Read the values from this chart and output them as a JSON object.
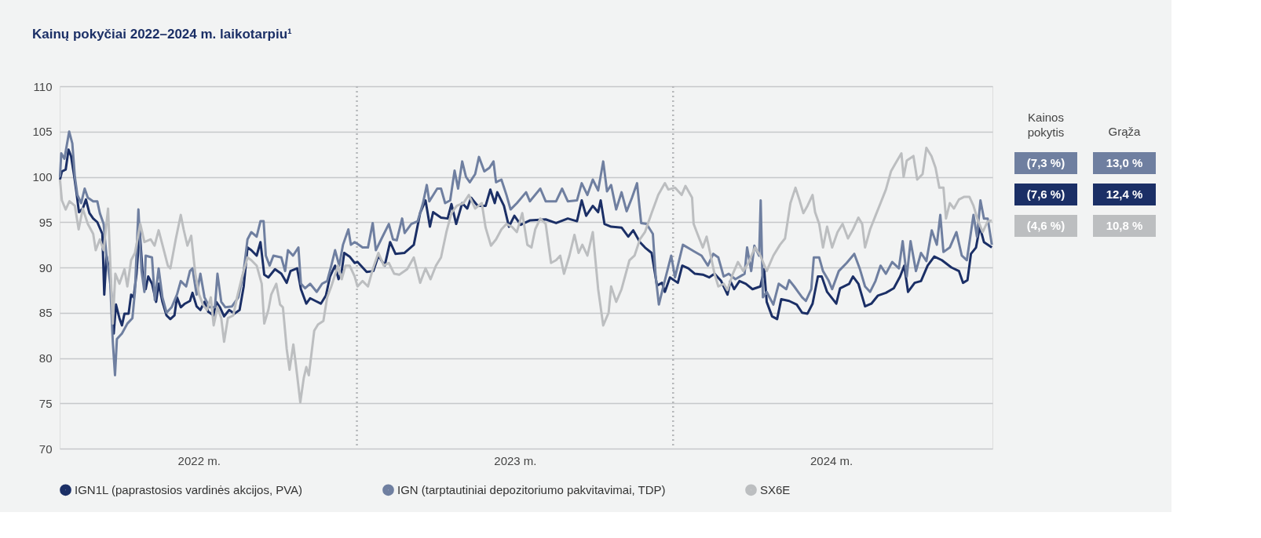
{
  "chart_data": {
    "type": "line",
    "title": "Kainų pokyčiai 2022–2024 m. laikotarpiu¹",
    "xlim": [
      2022.06,
      2025.01
    ],
    "xticks": [
      {
        "value": 2022.5,
        "label": "2022 m."
      },
      {
        "value": 2023.5,
        "label": "2023 m."
      },
      {
        "value": 2024.5,
        "label": "2024 m."
      }
    ],
    "ylim": [
      70,
      110
    ],
    "yticks": [
      70,
      75,
      80,
      85,
      90,
      95,
      100,
      105,
      110
    ],
    "grid": "y",
    "legend": "bottom",
    "line_style": "solid",
    "ref_lines": [
      {
        "axis": "x",
        "value": 2023.0,
        "label": null,
        "color": "#b5b7b9",
        "line_style": "dotted"
      },
      {
        "axis": "x",
        "value": 2024.0,
        "label": null,
        "color": "#b5b7b9",
        "line_style": "dotted"
      }
    ],
    "annotations": [
      "Kainos pokytis",
      "Grąža",
      "(7,3 %)",
      "13,0 %",
      "(7,6 %)",
      "12,4 %",
      "(4,6 %)",
      "10,8 %"
    ],
    "series": [
      {
        "name": "IGN1L (paprastosios vardinės akcijos, PVA)",
        "color": "#1b2f66",
        "x": [
          2022.061,
          2022.067,
          2022.079,
          2022.088,
          2022.096,
          2022.105,
          2022.113,
          2022.121,
          2022.133,
          2022.143,
          2022.154,
          2022.166,
          2022.179,
          2022.195,
          2022.201,
          2022.208,
          2022.22,
          2022.231,
          2022.238,
          2022.249,
          2022.257,
          2022.265,
          2022.278,
          2022.286,
          2022.294,
          2022.303,
          2022.313,
          2022.323,
          2022.332,
          2022.34,
          2022.352,
          2022.365,
          2022.373,
          2022.385,
          2022.398,
          2022.41,
          2022.423,
          2022.431,
          2022.443,
          2022.456,
          2022.472,
          2022.48,
          2022.493,
          2022.505,
          2022.518,
          2022.53,
          2022.547,
          2022.555,
          2022.567,
          2022.58,
          2022.596,
          2022.613,
          2022.629,
          2022.642,
          2022.654,
          2022.666,
          2022.683,
          2022.695,
          2022.707,
          2022.72,
          2022.741,
          2022.761,
          2022.778,
          2022.79,
          2022.811,
          2022.823,
          2022.84,
          2022.852,
          2022.869,
          2022.886,
          2022.902,
          2022.915,
          2022.931,
          2022.942,
          2022.952,
          2022.96,
          2022.977,
          2022.993,
          2023.002,
          2023.031,
          2023.052,
          2023.068,
          2023.088,
          2023.105,
          2023.122,
          2023.15,
          2023.18,
          2023.2,
          2023.217,
          2023.231,
          2023.241,
          2023.266,
          2023.287,
          2023.299,
          2023.314,
          2023.333,
          2023.349,
          2023.361,
          2023.382,
          2023.407,
          2023.422,
          2023.436,
          2023.444,
          2023.465,
          2023.481,
          2023.498,
          2023.518,
          2023.548,
          2023.597,
          2023.63,
          2023.667,
          2023.696,
          2023.711,
          2023.725,
          2023.746,
          2023.763,
          2023.771,
          2023.783,
          2023.804,
          2023.837,
          2023.858,
          2023.874,
          2023.895,
          2023.911,
          2023.932,
          2023.949,
          2023.965,
          2023.974,
          2023.99,
          2024.015,
          2024.029,
          2024.048,
          2024.069,
          2024.094,
          2024.114,
          2024.131,
          2024.152,
          2024.172,
          2024.181,
          2024.193,
          2024.21,
          2024.23,
          2024.251,
          2024.276,
          2024.288,
          2024.296,
          2024.313,
          2024.329,
          2024.342,
          2024.367,
          2024.391,
          2024.408,
          2024.425,
          2024.441,
          2024.458,
          2024.47,
          2024.487,
          2024.516,
          2024.528,
          2024.557,
          2024.569,
          2024.586,
          2024.607,
          2024.627,
          2024.648,
          2024.673,
          2024.698,
          2024.718,
          2024.731,
          2024.743,
          2024.764,
          2024.784,
          2024.805,
          2024.826,
          2024.85,
          2024.88,
          2024.904,
          2024.917,
          2024.931,
          2024.942,
          2024.958,
          2024.97,
          2024.983,
          2025.008
        ],
        "values": [
          99.7,
          100.6,
          100.8,
          103.0,
          102.3,
          100.3,
          98.3,
          96.1,
          96.5,
          97.5,
          96.0,
          95.4,
          95.0,
          93.7,
          87.0,
          91.3,
          89.0,
          82.7,
          85.9,
          84.4,
          83.6,
          84.9,
          84.9,
          87.0,
          86.7,
          89.3,
          94.1,
          89.0,
          87.6,
          89.0,
          88.2,
          86.2,
          88.2,
          86.2,
          84.7,
          84.3,
          84.7,
          86.7,
          85.6,
          86.0,
          86.3,
          87.2,
          85.7,
          85.3,
          86.2,
          85.1,
          84.7,
          86.2,
          85.6,
          84.6,
          85.3,
          84.9,
          85.3,
          87.9,
          92.2,
          91.9,
          91.3,
          92.8,
          89.2,
          88.9,
          89.8,
          89.3,
          88.3,
          89.6,
          89.9,
          87.6,
          86.0,
          86.6,
          86.3,
          86.0,
          86.9,
          89.0,
          90.2,
          88.7,
          89.6,
          91.6,
          91.2,
          90.5,
          90.6,
          89.5,
          89.6,
          91.3,
          90.2,
          92.8,
          91.5,
          91.6,
          92.5,
          96.0,
          97.4,
          94.5,
          96.1,
          95.5,
          95.4,
          97.0,
          94.8,
          97.1,
          96.5,
          97.7,
          96.8,
          96.8,
          98.6,
          97.1,
          98.3,
          96.8,
          94.5,
          95.7,
          94.7,
          95.2,
          95.3,
          94.9,
          95.4,
          95.1,
          97.4,
          95.7,
          96.8,
          96.1,
          97.4,
          94.8,
          94.5,
          94.4,
          93.4,
          94.1,
          92.8,
          92.2,
          91.6,
          88.0,
          88.3,
          87.3,
          88.9,
          88.3,
          90.2,
          89.9,
          89.3,
          89.2,
          88.9,
          89.3,
          88.5,
          87.0,
          88.5,
          87.6,
          88.5,
          88.2,
          87.6,
          87.9,
          89.8,
          86.2,
          84.6,
          84.3,
          86.5,
          86.3,
          85.9,
          85.0,
          84.9,
          86.0,
          89.0,
          89.0,
          87.3,
          86.0,
          87.7,
          88.2,
          89.0,
          88.2,
          85.7,
          86.0,
          86.9,
          87.2,
          87.7,
          89.0,
          90.2,
          87.3,
          88.3,
          88.5,
          90.2,
          91.2,
          90.8,
          90.0,
          89.6,
          88.3,
          88.6,
          91.5,
          92.2,
          94.5,
          92.8,
          92.2
        ]
      },
      {
        "name": "IGN (tarptautiniai depozitoriumo pakvitavimai, TDP)",
        "color": "#6f7fa0",
        "x": [
          2022.061,
          2022.065,
          2022.075,
          2022.09,
          2022.1,
          2022.108,
          2022.116,
          2022.128,
          2022.139,
          2022.149,
          2022.166,
          2022.179,
          2022.187,
          2022.199,
          2022.208,
          2022.22,
          2022.228,
          2022.235,
          2022.241,
          2022.257,
          2022.274,
          2022.29,
          2022.298,
          2022.309,
          2022.319,
          2022.328,
          2022.332,
          2022.352,
          2022.361,
          2022.373,
          2022.385,
          2022.398,
          2022.414,
          2022.431,
          2022.443,
          2022.46,
          2022.472,
          2022.48,
          2022.493,
          2022.505,
          2022.518,
          2022.534,
          2022.551,
          2022.559,
          2022.571,
          2022.584,
          2022.605,
          2022.625,
          2022.642,
          2022.654,
          2022.666,
          2022.683,
          2022.695,
          2022.705,
          2022.712,
          2022.724,
          2022.736,
          2022.761,
          2022.773,
          2022.782,
          2022.798,
          2022.815,
          2022.823,
          2022.836,
          2022.852,
          2022.873,
          2022.89,
          2022.906,
          2022.919,
          2022.931,
          2022.944,
          2022.956,
          2022.973,
          2022.981,
          2022.993,
          2023.002,
          2023.018,
          2023.035,
          2023.05,
          2023.06,
          2023.081,
          2023.101,
          2023.114,
          2023.126,
          2023.143,
          2023.151,
          2023.172,
          2023.192,
          2023.209,
          2023.221,
          2023.229,
          2023.254,
          2023.266,
          2023.279,
          2023.295,
          2023.309,
          2023.32,
          2023.333,
          2023.345,
          2023.357,
          2023.374,
          2023.386,
          2023.403,
          2023.419,
          2023.432,
          2023.44,
          2023.457,
          2023.473,
          2023.486,
          2023.506,
          2023.535,
          2023.547,
          2023.58,
          2023.597,
          2023.63,
          2023.649,
          2023.667,
          2023.696,
          2023.711,
          2023.729,
          2023.746,
          2023.763,
          2023.779,
          2023.791,
          2023.804,
          2023.82,
          2023.837,
          2023.853,
          2023.87,
          2023.886,
          2023.899,
          2023.916,
          2023.936,
          2023.945,
          2023.955,
          2023.969,
          2023.994,
          2024.006,
          2024.031,
          2024.06,
          2024.065,
          2024.09,
          2024.11,
          2024.127,
          2024.143,
          2024.16,
          2024.176,
          2024.197,
          2024.226,
          2024.234,
          2024.247,
          2024.257,
          2024.272,
          2024.277,
          2024.284,
          2024.296,
          2024.317,
          2024.334,
          2024.358,
          2024.367,
          2024.383,
          2024.408,
          2024.42,
          2024.437,
          2024.445,
          2024.462,
          2024.474,
          2024.491,
          2024.503,
          2024.524,
          2024.549,
          2024.573,
          2024.59,
          2024.607,
          2024.623,
          2024.64,
          2024.656,
          2024.673,
          2024.693,
          2024.714,
          2024.726,
          2024.739,
          2024.751,
          2024.768,
          2024.784,
          2024.801,
          2024.818,
          2024.834,
          2024.845,
          2024.855,
          2024.875,
          2024.896,
          2024.913,
          2024.929,
          2024.95,
          2024.961,
          2024.972,
          2024.983,
          2024.995,
          2025.008
        ],
        "values": [
          100.0,
          102.6,
          102.0,
          105.0,
          103.7,
          100.0,
          98.0,
          97.1,
          98.7,
          97.7,
          97.3,
          97.3,
          96.0,
          94.8,
          91.3,
          88.2,
          81.8,
          78.1,
          82.1,
          82.7,
          83.8,
          84.4,
          87.3,
          96.4,
          89.6,
          87.3,
          91.3,
          91.1,
          86.4,
          89.9,
          86.7,
          85.0,
          85.6,
          87.0,
          88.5,
          87.9,
          89.6,
          89.9,
          87.0,
          89.3,
          86.7,
          85.6,
          85.6,
          89.3,
          86.2,
          85.6,
          85.7,
          86.7,
          89.6,
          93.1,
          93.9,
          93.4,
          95.1,
          95.1,
          91.3,
          90.2,
          91.3,
          91.1,
          89.6,
          91.9,
          91.3,
          92.2,
          88.2,
          87.7,
          88.2,
          87.3,
          88.2,
          88.5,
          90.2,
          91.9,
          90.2,
          92.5,
          94.2,
          92.5,
          92.8,
          92.6,
          92.2,
          92.2,
          94.9,
          91.9,
          93.4,
          94.8,
          93.1,
          93.0,
          95.4,
          93.8,
          94.8,
          95.1,
          97.1,
          99.1,
          97.3,
          98.7,
          98.7,
          97.1,
          97.4,
          100.7,
          98.7,
          101.7,
          100.0,
          99.4,
          100.3,
          102.2,
          100.6,
          101.0,
          101.7,
          99.4,
          99.7,
          98.0,
          96.4,
          97.1,
          98.3,
          97.3,
          98.7,
          97.3,
          97.3,
          98.7,
          97.3,
          97.4,
          99.3,
          98.0,
          99.7,
          98.5,
          101.7,
          98.4,
          99.1,
          96.4,
          98.3,
          96.2,
          97.7,
          99.3,
          94.9,
          94.8,
          93.7,
          89.0,
          85.9,
          87.9,
          91.3,
          88.9,
          92.5,
          91.9,
          91.8,
          91.3,
          90.2,
          91.5,
          91.1,
          89.0,
          89.3,
          88.7,
          89.3,
          92.2,
          89.6,
          92.4,
          91.3,
          97.4,
          86.7,
          87.3,
          85.9,
          88.2,
          87.6,
          88.6,
          87.9,
          86.7,
          86.3,
          87.6,
          91.1,
          91.1,
          89.6,
          88.6,
          87.6,
          89.6,
          90.5,
          91.5,
          89.9,
          87.9,
          87.3,
          88.5,
          90.2,
          89.3,
          90.6,
          89.9,
          92.9,
          89.0,
          92.9,
          89.6,
          91.6,
          90.7,
          94.1,
          92.5,
          95.8,
          91.7,
          92.2,
          93.9,
          91.3,
          90.8,
          95.8,
          93.4,
          97.4,
          95.4,
          95.4,
          92.5
        ]
      },
      {
        "name": "SX6E",
        "color": "#bcbec0",
        "x": [
          2022.061,
          2022.067,
          2022.079,
          2022.091,
          2022.108,
          2022.12,
          2022.133,
          2022.149,
          2022.166,
          2022.174,
          2022.187,
          2022.199,
          2022.213,
          2022.22,
          2022.228,
          2022.236,
          2022.249,
          2022.265,
          2022.274,
          2022.286,
          2022.298,
          2022.315,
          2022.328,
          2022.348,
          2022.36,
          2022.373,
          2022.385,
          2022.402,
          2022.41,
          2022.427,
          2022.443,
          2022.452,
          2022.464,
          2022.476,
          2022.489,
          2022.501,
          2022.513,
          2022.526,
          2022.538,
          2022.547,
          2022.559,
          2022.571,
          2022.58,
          2022.592,
          2022.609,
          2022.621,
          2022.637,
          2022.654,
          2022.666,
          2022.683,
          2022.699,
          2022.707,
          2022.72,
          2022.729,
          2022.745,
          2022.757,
          2022.766,
          2022.778,
          2022.787,
          2022.799,
          2022.811,
          2022.821,
          2022.832,
          2022.84,
          2022.848,
          2022.865,
          2022.877,
          2022.894,
          2022.906,
          2022.919,
          2022.94,
          2022.952,
          2022.964,
          2022.977,
          2022.993,
          2023.002,
          2023.018,
          2023.035,
          2023.051,
          2023.068,
          2023.085,
          2023.101,
          2023.118,
          2023.134,
          2023.159,
          2023.18,
          2023.2,
          2023.217,
          2023.233,
          2023.25,
          2023.266,
          2023.283,
          2023.299,
          2023.316,
          2023.337,
          2023.354,
          2023.374,
          2023.395,
          2023.407,
          2023.424,
          2023.44,
          2023.457,
          2023.473,
          2023.49,
          2023.506,
          2023.523,
          2023.539,
          2023.552,
          2023.564,
          2023.58,
          2023.597,
          2023.614,
          2023.63,
          2023.643,
          2023.655,
          2023.672,
          2023.688,
          2023.701,
          2023.713,
          2023.729,
          2023.746,
          2023.763,
          2023.779,
          2023.796,
          2023.804,
          2023.82,
          2023.837,
          2023.862,
          2023.878,
          2023.895,
          2023.911,
          2023.932,
          2023.953,
          2023.974,
          2023.985,
          2024.006,
          2024.027,
          2024.039,
          2024.06,
          2024.065,
          2024.077,
          2024.094,
          2024.106,
          2024.119,
          2024.131,
          2024.143,
          2024.16,
          2024.172,
          2024.189,
          2024.205,
          2024.222,
          2024.238,
          2024.259,
          2024.276,
          2024.296,
          2024.317,
          2024.338,
          2024.354,
          2024.371,
          2024.387,
          2024.4,
          2024.412,
          2024.425,
          2024.441,
          2024.449,
          2024.462,
          2024.474,
          2024.487,
          2024.503,
          2024.52,
          2024.536,
          2024.553,
          2024.569,
          2024.586,
          2024.598,
          2024.607,
          2024.623,
          2024.64,
          2024.656,
          2024.673,
          2024.689,
          2024.702,
          2024.722,
          2024.729,
          2024.739,
          2024.76,
          2024.772,
          2024.789,
          2024.801,
          2024.817,
          2024.83,
          2024.842,
          2024.855,
          2024.863,
          2024.875,
          2024.888,
          2024.904,
          2024.921,
          2024.937,
          2024.95,
          2024.962,
          2024.979,
          2024.995,
          2025.008
        ],
        "values": [
          99.7,
          97.4,
          96.4,
          97.3,
          96.8,
          94.2,
          96.5,
          94.8,
          93.7,
          91.9,
          93.1,
          91.9,
          96.5,
          90.5,
          83.8,
          89.3,
          88.2,
          89.8,
          87.9,
          90.8,
          91.6,
          94.8,
          92.8,
          93.1,
          92.4,
          94.1,
          92.5,
          90.2,
          89.9,
          93.1,
          95.8,
          94.2,
          92.4,
          93.5,
          89.3,
          87.0,
          85.9,
          85.3,
          86.7,
          83.6,
          85.6,
          84.4,
          81.8,
          84.4,
          84.7,
          86.7,
          89.0,
          91.1,
          90.8,
          90.2,
          88.2,
          83.8,
          85.3,
          87.0,
          88.2,
          85.9,
          85.6,
          81.0,
          78.7,
          81.5,
          78.1,
          75.1,
          77.8,
          79.0,
          78.1,
          83.0,
          83.7,
          84.1,
          86.7,
          87.9,
          90.2,
          88.7,
          90.2,
          90.2,
          89.0,
          87.9,
          88.5,
          87.9,
          89.9,
          91.6,
          90.2,
          90.5,
          89.3,
          89.2,
          89.8,
          91.1,
          88.3,
          89.9,
          88.7,
          90.2,
          91.1,
          93.9,
          96.0,
          96.8,
          97.1,
          98.0,
          96.5,
          97.1,
          94.4,
          92.4,
          93.1,
          94.2,
          94.8,
          94.5,
          93.9,
          96.0,
          92.5,
          92.2,
          94.2,
          95.4,
          94.8,
          90.5,
          90.8,
          91.3,
          89.3,
          91.3,
          93.6,
          91.6,
          92.5,
          91.3,
          93.9,
          87.6,
          83.6,
          85.0,
          87.9,
          86.2,
          87.6,
          90.8,
          91.3,
          93.1,
          93.9,
          96.0,
          98.0,
          99.3,
          98.6,
          98.8,
          98.0,
          99.0,
          97.7,
          94.8,
          93.7,
          92.2,
          93.4,
          91.3,
          89.3,
          87.9,
          88.2,
          87.5,
          89.3,
          90.6,
          89.6,
          90.5,
          92.2,
          91.3,
          89.6,
          91.3,
          92.5,
          93.2,
          97.1,
          98.8,
          97.4,
          96.0,
          96.8,
          98.0,
          96.1,
          94.8,
          92.2,
          94.5,
          92.2,
          93.9,
          94.8,
          93.2,
          94.2,
          95.5,
          94.8,
          92.2,
          94.2,
          95.7,
          97.1,
          98.6,
          100.6,
          101.4,
          102.6,
          100.0,
          101.8,
          102.3,
          99.7,
          100.3,
          103.2,
          102.3,
          101.0,
          98.8,
          98.8,
          95.4,
          97.1,
          96.5,
          97.5,
          97.8,
          97.8,
          96.8,
          95.4,
          93.9,
          95.1,
          95.2
        ]
      }
    ]
  }
}
